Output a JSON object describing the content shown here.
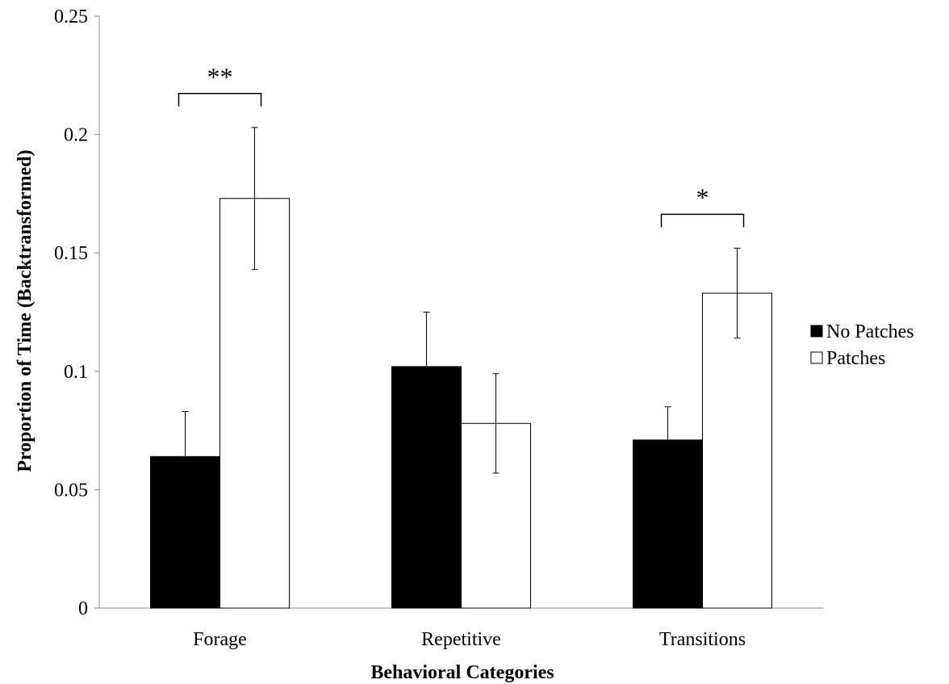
{
  "chart_data": {
    "type": "bar",
    "categories": [
      "Forage",
      "Repetitive",
      "Transitions"
    ],
    "series": [
      {
        "name": "No Patches",
        "color": "#000000",
        "values": [
          0.064,
          0.102,
          0.071
        ],
        "errors": [
          0.019,
          0.023,
          0.014
        ]
      },
      {
        "name": "Patches",
        "color": "#ffffff",
        "values": [
          0.173,
          0.078,
          0.133
        ],
        "errors": [
          0.03,
          0.021,
          0.019
        ]
      }
    ],
    "xlabel": "Behavioral Categories",
    "ylabel": "Proportion of Time (Backtransformed)",
    "ylim": [
      0,
      0.25
    ],
    "yticks": [
      "0",
      "0.05",
      "0.1",
      "0.15",
      "0.2",
      "0.25"
    ],
    "ytick_values": [
      0,
      0.05,
      0.1,
      0.15,
      0.2,
      0.25
    ],
    "significance": [
      {
        "category": "Forage",
        "label": "**"
      },
      {
        "category": "Transitions",
        "label": "*"
      }
    ],
    "legend_position": "right",
    "grid": false
  }
}
